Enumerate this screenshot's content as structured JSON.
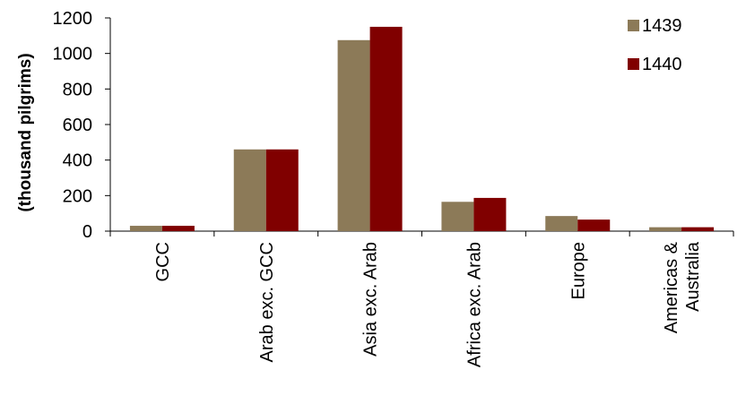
{
  "chart_data": {
    "type": "bar",
    "title": "",
    "xlabel": "",
    "ylabel": "(thousand pilgrims)",
    "ylim": [
      0,
      1200
    ],
    "yticks": [
      0,
      200,
      400,
      600,
      800,
      1000,
      1200
    ],
    "grid": false,
    "legend_position": "top-right",
    "categories": [
      [
        "GCC"
      ],
      [
        "Arab exc. GCC"
      ],
      [
        "Asia exc. Arab"
      ],
      [
        "Africa exc. Arab"
      ],
      [
        "Europe"
      ],
      [
        "Americas &",
        "Australia"
      ]
    ],
    "series": [
      {
        "name": "1439",
        "color": "#8c7a58",
        "values": [
          30,
          460,
          1075,
          165,
          85,
          22
        ]
      },
      {
        "name": "1440",
        "color": "#800000",
        "values": [
          30,
          460,
          1150,
          187,
          65,
          22
        ]
      }
    ]
  }
}
